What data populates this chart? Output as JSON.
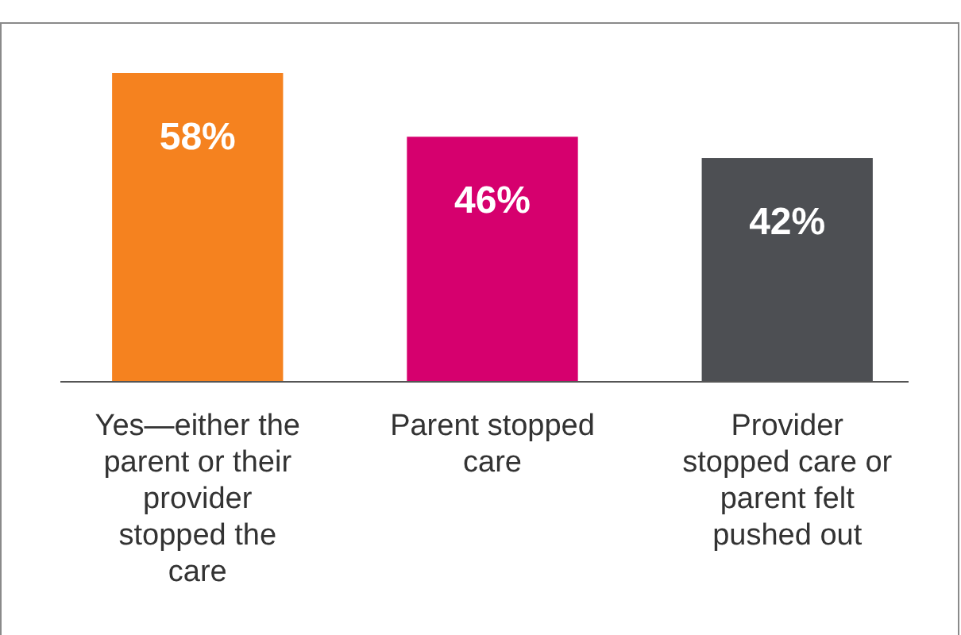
{
  "chart_data": {
    "type": "bar",
    "categories": [
      "Yes—either the parent or their provider stopped the care",
      "Parent stopped care",
      "Provider stopped care or parent felt pushed out"
    ],
    "values": [
      58,
      46,
      42
    ],
    "colors": [
      "#f5821f",
      "#d6006e",
      "#4d4f53"
    ],
    "ylim": [
      0,
      58
    ],
    "value_labels": [
      "58%",
      "46%",
      "42%"
    ]
  }
}
